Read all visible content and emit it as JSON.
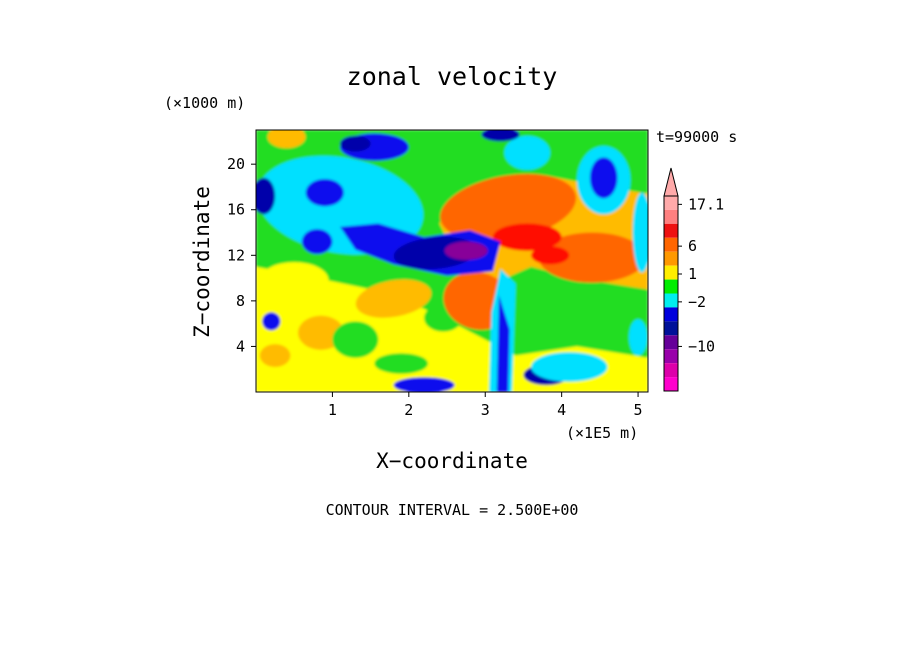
{
  "chart_data": {
    "type": "heatmap",
    "title": "zonal velocity",
    "xlabel": "X−coordinate",
    "ylabel": "Z−coordinate",
    "x_unit": "(×1E5 m)",
    "y_unit": "(×1000 m)",
    "time_label": "t=99000 s",
    "footer": "CONTOUR INTERVAL = 2.500E+00",
    "xlim": [
      0,
      5.13
    ],
    "ylim": [
      0,
      23
    ],
    "x_ticks": [
      "1",
      "2",
      "3",
      "4",
      "5"
    ],
    "y_ticks": [
      "4",
      "8",
      "12",
      "16",
      "20"
    ],
    "colorbar_labels": [
      "17.1",
      "6",
      "1",
      "−2",
      "−10"
    ],
    "colorbar_colors": [
      "#ffaaaa",
      "#ff8080",
      "#ee1111",
      "#ff6600",
      "#ff9900",
      "#ffee00",
      "#00ee00",
      "#00eeee",
      "#0000dd",
      "#001199",
      "#660099",
      "#9900aa",
      "#dd00aa",
      "#ff00cc"
    ],
    "field_colors": {
      "core_negative": "#880099",
      "strong_negative": "#0000aa",
      "negative": "#1111ee",
      "weak_negative": "#00e0ff",
      "near_zero": "#22dd22",
      "weak_positive": "#ffff00",
      "positive": "#ffbb00",
      "strong_positive": "#ff6600",
      "max_positive": "#ff1100"
    }
  }
}
